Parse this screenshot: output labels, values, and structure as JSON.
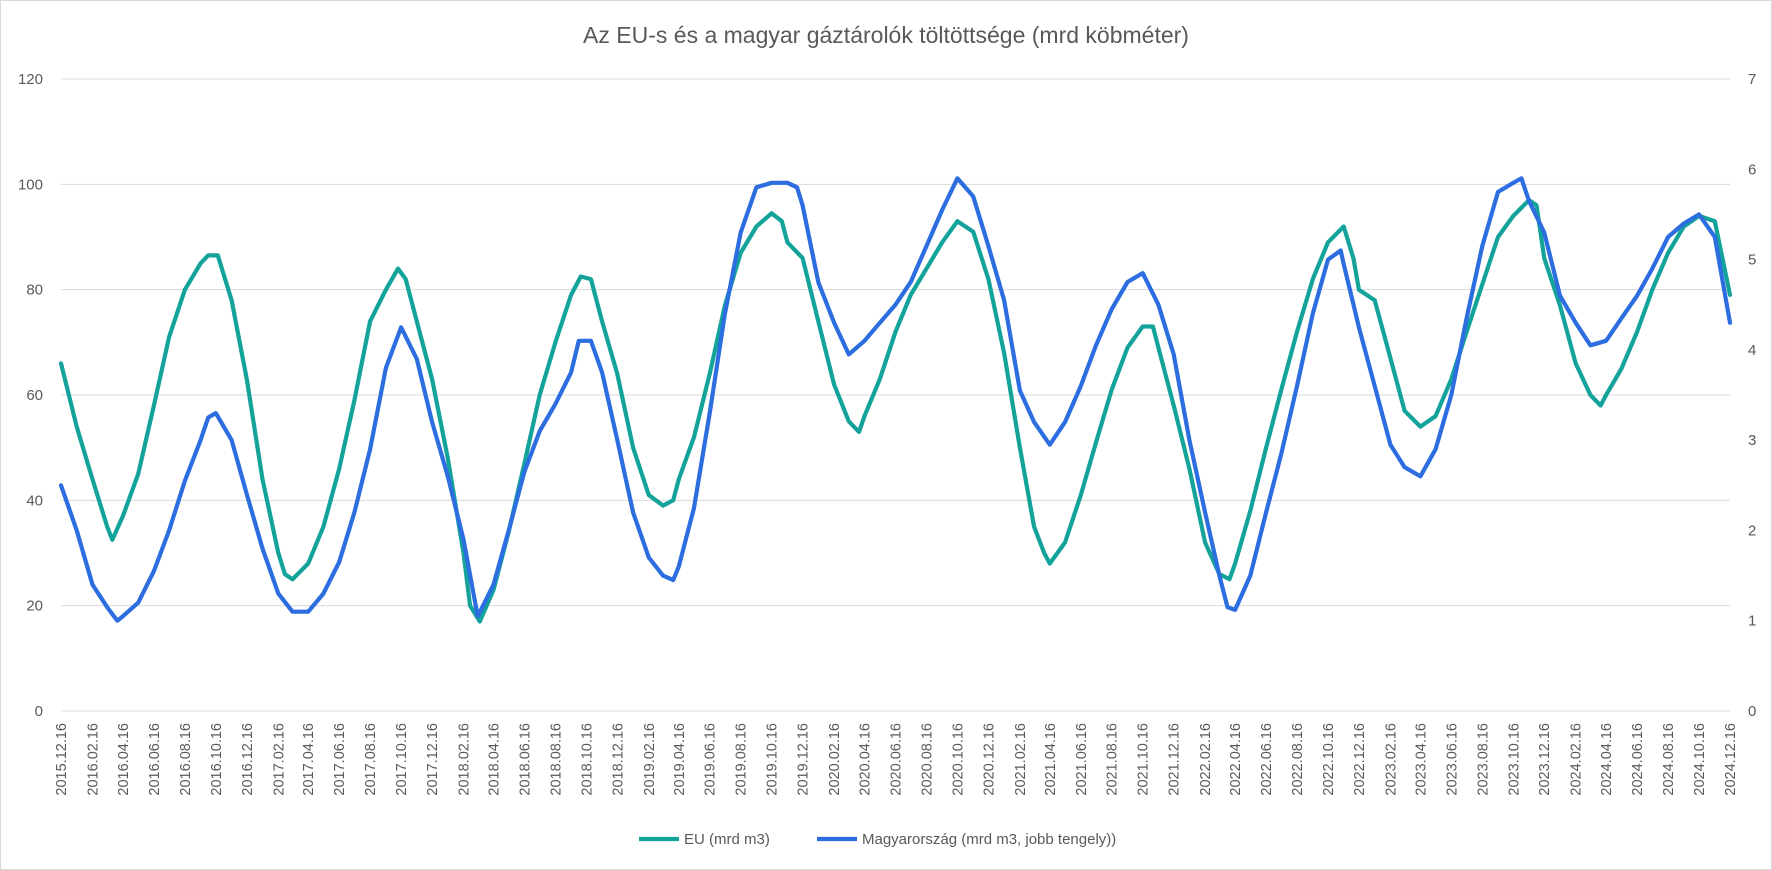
{
  "colors": {
    "eu": "#13a39a",
    "hu": "#2c6de0",
    "grid": "#d9d9d9",
    "text": "#595959"
  },
  "chart_data": {
    "type": "line",
    "title": "Az EU-s és a magyar gáztárolók töltöttsége (mrd köbméter)",
    "grid": true,
    "legend_position": "bottom",
    "y_left": {
      "range": [
        0,
        120
      ],
      "ticks": [
        "0",
        "20",
        "40",
        "60",
        "80",
        "100",
        "120"
      ]
    },
    "y_right": {
      "range": [
        0,
        7
      ],
      "ticks": [
        "0",
        "1",
        "2",
        "3",
        "4",
        "5",
        "6",
        "7"
      ]
    },
    "x_range": [
      "2015-12-16",
      "2024-12-16"
    ],
    "x_ticks": [
      "2015.12.16",
      "2016.02.16",
      "2016.04.16",
      "2016.06.16",
      "2016.08.16",
      "2016.10.16",
      "2016.12.16",
      "2017.02.16",
      "2017.04.16",
      "2017.06.16",
      "2017.08.16",
      "2017.10.16",
      "2017.12.16",
      "2018.02.16",
      "2018.04.16",
      "2018.06.16",
      "2018.08.16",
      "2018.10.16",
      "2018.12.16",
      "2019.02.16",
      "2019.04.16",
      "2019.06.16",
      "2019.08.16",
      "2019.10.16",
      "2019.12.16",
      "2020.02.16",
      "2020.04.16",
      "2020.06.16",
      "2020.08.16",
      "2020.10.16",
      "2020.12.16",
      "2021.02.16",
      "2021.04.16",
      "2021.06.16",
      "2021.08.16",
      "2021.10.16",
      "2021.12.16",
      "2022.02.16",
      "2022.04.16",
      "2022.06.16",
      "2022.08.16",
      "2022.10.16",
      "2022.12.16",
      "2023.02.16",
      "2023.04.16",
      "2023.06.16",
      "2023.08.16",
      "2023.10.16",
      "2023.12.16",
      "2024.02.16",
      "2024.04.16",
      "2024.06.16",
      "2024.08.16",
      "2024.10.16",
      "2024.12.16"
    ],
    "series": [
      {
        "name": "EU (mrd m3)",
        "axis": "left",
        "points": [
          [
            "2015-12-16",
            66
          ],
          [
            "2016-01-16",
            54
          ],
          [
            "2016-02-16",
            44
          ],
          [
            "2016-03-16",
            35
          ],
          [
            "2016-03-26",
            32.5
          ],
          [
            "2016-04-16",
            37
          ],
          [
            "2016-05-16",
            45
          ],
          [
            "2016-06-16",
            58
          ],
          [
            "2016-07-16",
            71
          ],
          [
            "2016-08-16",
            80
          ],
          [
            "2016-09-16",
            85
          ],
          [
            "2016-10-01",
            86.5
          ],
          [
            "2016-10-20",
            86.5
          ],
          [
            "2016-11-16",
            78
          ],
          [
            "2016-12-16",
            63
          ],
          [
            "2017-01-16",
            44
          ],
          [
            "2017-02-16",
            30
          ],
          [
            "2017-03-01",
            26
          ],
          [
            "2017-03-16",
            25
          ],
          [
            "2017-04-16",
            28
          ],
          [
            "2017-05-16",
            35
          ],
          [
            "2017-06-16",
            46
          ],
          [
            "2017-07-16",
            59
          ],
          [
            "2017-08-16",
            74
          ],
          [
            "2017-09-16",
            80
          ],
          [
            "2017-10-10",
            84
          ],
          [
            "2017-10-25",
            82
          ],
          [
            "2017-11-16",
            74
          ],
          [
            "2017-12-16",
            63
          ],
          [
            "2018-01-16",
            48
          ],
          [
            "2018-02-16",
            30
          ],
          [
            "2018-03-01",
            20
          ],
          [
            "2018-03-20",
            17
          ],
          [
            "2018-04-16",
            23
          ],
          [
            "2018-05-16",
            34
          ],
          [
            "2018-06-16",
            47
          ],
          [
            "2018-07-16",
            60
          ],
          [
            "2018-08-16",
            70
          ],
          [
            "2018-09-16",
            79
          ],
          [
            "2018-10-05",
            82.5
          ],
          [
            "2018-10-25",
            82
          ],
          [
            "2018-11-16",
            74
          ],
          [
            "2018-12-16",
            64
          ],
          [
            "2019-01-16",
            50
          ],
          [
            "2019-02-16",
            41
          ],
          [
            "2019-03-16",
            39
          ],
          [
            "2019-04-05",
            40
          ],
          [
            "2019-04-16",
            44
          ],
          [
            "2019-05-16",
            52
          ],
          [
            "2019-06-16",
            64
          ],
          [
            "2019-07-16",
            77
          ],
          [
            "2019-08-16",
            87
          ],
          [
            "2019-09-16",
            92
          ],
          [
            "2019-10-16",
            94.5
          ],
          [
            "2019-11-05",
            93
          ],
          [
            "2019-11-16",
            89
          ],
          [
            "2019-12-16",
            86
          ],
          [
            "2020-01-16",
            74
          ],
          [
            "2020-02-16",
            62
          ],
          [
            "2020-03-16",
            55
          ],
          [
            "2020-04-05",
            53
          ],
          [
            "2020-04-16",
            56
          ],
          [
            "2020-05-16",
            63
          ],
          [
            "2020-06-16",
            72
          ],
          [
            "2020-07-16",
            79
          ],
          [
            "2020-08-16",
            84
          ],
          [
            "2020-09-16",
            89
          ],
          [
            "2020-10-16",
            93
          ],
          [
            "2020-11-16",
            91
          ],
          [
            "2020-12-16",
            82
          ],
          [
            "2021-01-16",
            68
          ],
          [
            "2021-02-16",
            50
          ],
          [
            "2021-03-16",
            35
          ],
          [
            "2021-04-05",
            30
          ],
          [
            "2021-04-16",
            28
          ],
          [
            "2021-05-16",
            32
          ],
          [
            "2021-06-16",
            41
          ],
          [
            "2021-07-16",
            51
          ],
          [
            "2021-08-16",
            61
          ],
          [
            "2021-09-16",
            69
          ],
          [
            "2021-10-16",
            73
          ],
          [
            "2021-11-05",
            73
          ],
          [
            "2021-11-16",
            69
          ],
          [
            "2021-12-16",
            58
          ],
          [
            "2022-01-16",
            46
          ],
          [
            "2022-02-16",
            32
          ],
          [
            "2022-03-16",
            26
          ],
          [
            "2022-04-05",
            25
          ],
          [
            "2022-04-16",
            28
          ],
          [
            "2022-05-16",
            38
          ],
          [
            "2022-06-16",
            50
          ],
          [
            "2022-07-16",
            61
          ],
          [
            "2022-08-16",
            72
          ],
          [
            "2022-09-16",
            82
          ],
          [
            "2022-10-16",
            89
          ],
          [
            "2022-11-16",
            92
          ],
          [
            "2022-12-05",
            86
          ],
          [
            "2022-12-16",
            80
          ],
          [
            "2023-01-16",
            78
          ],
          [
            "2023-02-16",
            67
          ],
          [
            "2023-03-16",
            57
          ],
          [
            "2023-04-16",
            54
          ],
          [
            "2023-05-16",
            56
          ],
          [
            "2023-06-16",
            63
          ],
          [
            "2023-07-16",
            72
          ],
          [
            "2023-08-16",
            81
          ],
          [
            "2023-09-16",
            90
          ],
          [
            "2023-10-16",
            94
          ],
          [
            "2023-11-16",
            97
          ],
          [
            "2023-12-01",
            96
          ],
          [
            "2023-12-16",
            86
          ],
          [
            "2024-01-16",
            77
          ],
          [
            "2024-02-16",
            66
          ],
          [
            "2024-03-16",
            60
          ],
          [
            "2024-04-05",
            58
          ],
          [
            "2024-04-16",
            60
          ],
          [
            "2024-05-16",
            65
          ],
          [
            "2024-06-16",
            72
          ],
          [
            "2024-07-16",
            80
          ],
          [
            "2024-08-16",
            87
          ],
          [
            "2024-09-16",
            92
          ],
          [
            "2024-10-16",
            94
          ],
          [
            "2024-11-16",
            93
          ],
          [
            "2024-12-16",
            79
          ]
        ]
      },
      {
        "name": "Magyarország (mrd m3, jobb tengely))",
        "axis": "right",
        "points": [
          [
            "2015-12-16",
            2.5
          ],
          [
            "2016-01-16",
            2.0
          ],
          [
            "2016-02-16",
            1.4
          ],
          [
            "2016-03-16",
            1.15
          ],
          [
            "2016-04-05",
            1.0
          ],
          [
            "2016-04-16",
            1.05
          ],
          [
            "2016-05-16",
            1.2
          ],
          [
            "2016-06-16",
            1.55
          ],
          [
            "2016-07-16",
            2.0
          ],
          [
            "2016-08-16",
            2.55
          ],
          [
            "2016-09-16",
            3.0
          ],
          [
            "2016-10-01",
            3.25
          ],
          [
            "2016-10-16",
            3.3
          ],
          [
            "2016-11-16",
            3.0
          ],
          [
            "2016-12-16",
            2.4
          ],
          [
            "2017-01-16",
            1.8
          ],
          [
            "2017-02-16",
            1.3
          ],
          [
            "2017-03-16",
            1.1
          ],
          [
            "2017-04-16",
            1.1
          ],
          [
            "2017-05-16",
            1.3
          ],
          [
            "2017-06-16",
            1.65
          ],
          [
            "2017-07-16",
            2.2
          ],
          [
            "2017-08-16",
            2.9
          ],
          [
            "2017-09-16",
            3.8
          ],
          [
            "2017-10-16",
            4.25
          ],
          [
            "2017-11-16",
            3.9
          ],
          [
            "2017-12-16",
            3.2
          ],
          [
            "2018-01-16",
            2.6
          ],
          [
            "2018-02-16",
            1.9
          ],
          [
            "2018-03-16",
            1.05
          ],
          [
            "2018-03-25",
            1.15
          ],
          [
            "2018-04-16",
            1.4
          ],
          [
            "2018-05-16",
            2.0
          ],
          [
            "2018-06-16",
            2.65
          ],
          [
            "2018-07-16",
            3.1
          ],
          [
            "2018-08-16",
            3.4
          ],
          [
            "2018-09-16",
            3.75
          ],
          [
            "2018-10-01",
            4.1
          ],
          [
            "2018-10-25",
            4.1
          ],
          [
            "2018-11-16",
            3.75
          ],
          [
            "2018-12-16",
            3.0
          ],
          [
            "2019-01-16",
            2.2
          ],
          [
            "2019-02-16",
            1.7
          ],
          [
            "2019-03-16",
            1.5
          ],
          [
            "2019-04-05",
            1.45
          ],
          [
            "2019-04-16",
            1.6
          ],
          [
            "2019-05-16",
            2.25
          ],
          [
            "2019-06-16",
            3.3
          ],
          [
            "2019-07-16",
            4.4
          ],
          [
            "2019-08-16",
            5.3
          ],
          [
            "2019-09-16",
            5.8
          ],
          [
            "2019-10-16",
            5.85
          ],
          [
            "2019-11-16",
            5.85
          ],
          [
            "2019-12-05",
            5.8
          ],
          [
            "2019-12-16",
            5.6
          ],
          [
            "2020-01-16",
            4.75
          ],
          [
            "2020-02-16",
            4.3
          ],
          [
            "2020-03-16",
            3.95
          ],
          [
            "2020-04-16",
            4.1
          ],
          [
            "2020-05-16",
            4.3
          ],
          [
            "2020-06-16",
            4.5
          ],
          [
            "2020-07-16",
            4.75
          ],
          [
            "2020-08-16",
            5.15
          ],
          [
            "2020-09-16",
            5.55
          ],
          [
            "2020-10-16",
            5.9
          ],
          [
            "2020-11-16",
            5.7
          ],
          [
            "2020-12-16",
            5.15
          ],
          [
            "2021-01-16",
            4.55
          ],
          [
            "2021-02-16",
            3.55
          ],
          [
            "2021-03-16",
            3.2
          ],
          [
            "2021-04-16",
            2.95
          ],
          [
            "2021-05-16",
            3.2
          ],
          [
            "2021-06-16",
            3.6
          ],
          [
            "2021-07-16",
            4.05
          ],
          [
            "2021-08-16",
            4.45
          ],
          [
            "2021-09-16",
            4.75
          ],
          [
            "2021-10-16",
            4.85
          ],
          [
            "2021-11-16",
            4.5
          ],
          [
            "2021-12-16",
            3.95
          ],
          [
            "2022-01-16",
            3.0
          ],
          [
            "2022-02-16",
            2.2
          ],
          [
            "2022-03-16",
            1.5
          ],
          [
            "2022-04-01",
            1.15
          ],
          [
            "2022-04-16",
            1.12
          ],
          [
            "2022-05-16",
            1.5
          ],
          [
            "2022-06-16",
            2.2
          ],
          [
            "2022-07-16",
            2.85
          ],
          [
            "2022-08-16",
            3.6
          ],
          [
            "2022-09-16",
            4.4
          ],
          [
            "2022-10-16",
            5.0
          ],
          [
            "2022-11-10",
            5.1
          ],
          [
            "2022-11-16",
            4.95
          ],
          [
            "2022-12-16",
            4.25
          ],
          [
            "2023-01-16",
            3.6
          ],
          [
            "2023-02-16",
            2.95
          ],
          [
            "2023-03-16",
            2.7
          ],
          [
            "2023-04-16",
            2.6
          ],
          [
            "2023-05-16",
            2.9
          ],
          [
            "2023-06-16",
            3.5
          ],
          [
            "2023-07-16",
            4.35
          ],
          [
            "2023-08-16",
            5.15
          ],
          [
            "2023-09-16",
            5.75
          ],
          [
            "2023-10-16",
            5.85
          ],
          [
            "2023-11-01",
            5.9
          ],
          [
            "2023-11-16",
            5.65
          ],
          [
            "2023-12-16",
            5.3
          ],
          [
            "2024-01-16",
            4.6
          ],
          [
            "2024-02-16",
            4.3
          ],
          [
            "2024-03-16",
            4.05
          ],
          [
            "2024-04-16",
            4.1
          ],
          [
            "2024-05-16",
            4.35
          ],
          [
            "2024-06-16",
            4.6
          ],
          [
            "2024-07-16",
            4.9
          ],
          [
            "2024-08-16",
            5.25
          ],
          [
            "2024-09-16",
            5.4
          ],
          [
            "2024-10-16",
            5.5
          ],
          [
            "2024-11-16",
            5.25
          ],
          [
            "2024-12-16",
            4.3
          ]
        ]
      }
    ]
  }
}
